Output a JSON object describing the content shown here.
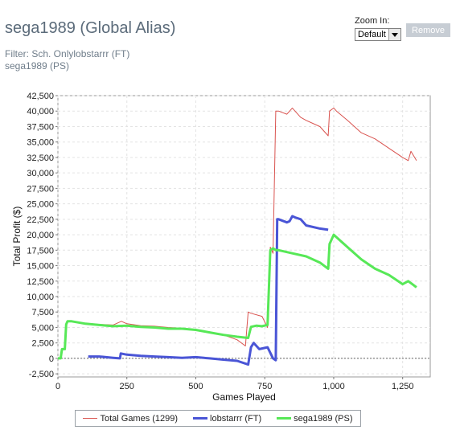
{
  "header": {
    "title": "sega1989 (Global Alias)",
    "filter_line1": "Filter: Sch. Onlylobstarrr (FT)",
    "filter_line2": "sega1989 (PS)"
  },
  "zoom": {
    "label": "Zoom In:",
    "selected": "Default",
    "remove_label": "Remove"
  },
  "colors": {
    "total": "#d9534f",
    "lobstarrr": "#4a55d6",
    "sega": "#57e857"
  },
  "chart_data": {
    "type": "line",
    "xlabel": "Games Played",
    "ylabel": "Total Profit ($)",
    "xlim": [
      0,
      1350
    ],
    "ylim": [
      -3000,
      42500
    ],
    "x_ticks": [
      0,
      250,
      500,
      750,
      1000,
      1250
    ],
    "x_tick_labels": [
      "0",
      "250",
      "500",
      "750",
      "1,000",
      "1,250"
    ],
    "y_ticks": [
      -2500,
      0,
      2500,
      5000,
      7500,
      10000,
      12500,
      15000,
      17500,
      20000,
      22500,
      25000,
      27500,
      30000,
      32500,
      35000,
      37500,
      40000,
      42500
    ],
    "y_tick_labels": [
      "-2,500",
      "0",
      "2,500",
      "5,000",
      "7,500",
      "10,000",
      "12,500",
      "15,000",
      "17,500",
      "20,000",
      "22,500",
      "25,000",
      "27,500",
      "30,000",
      "32,500",
      "35,000",
      "37,500",
      "40,000",
      "42,500"
    ],
    "grid": true,
    "legend_position": "bottom",
    "series": [
      {
        "name": "Total Games (1299)",
        "x": [
          0,
          10,
          15,
          25,
          30,
          35,
          50,
          100,
          150,
          200,
          230,
          250,
          300,
          350,
          400,
          450,
          500,
          550,
          600,
          650,
          680,
          690,
          700,
          740,
          760,
          770,
          775,
          780,
          790,
          800,
          830,
          850,
          880,
          900,
          950,
          980,
          985,
          1000,
          1010,
          1050,
          1100,
          1150,
          1200,
          1250,
          1270,
          1280,
          1300
        ],
        "y": [
          0,
          0,
          1500,
          1500,
          5500,
          6000,
          6000,
          5700,
          5500,
          5400,
          6000,
          5600,
          5300,
          5200,
          5000,
          4900,
          4600,
          4200,
          3800,
          3000,
          2000,
          7500,
          7300,
          6800,
          5000,
          18000,
          17500,
          17000,
          40000,
          40000,
          39500,
          40500,
          39000,
          38500,
          37500,
          36000,
          40000,
          40500,
          40000,
          38500,
          36500,
          35500,
          34000,
          32500,
          32000,
          33500,
          32000
        ]
      },
      {
        "name": "lobstarrr (FT)",
        "x": [
          110,
          150,
          200,
          225,
          228,
          250,
          300,
          350,
          400,
          450,
          500,
          550,
          600,
          650,
          690,
          700,
          710,
          730,
          760,
          780,
          790,
          795,
          800,
          830,
          840,
          850,
          860,
          880,
          900,
          950,
          980
        ],
        "y": [
          300,
          300,
          100,
          0,
          800,
          600,
          400,
          300,
          200,
          100,
          200,
          0,
          -200,
          -400,
          -1000,
          1800,
          2500,
          1500,
          1800,
          0,
          -300,
          22500,
          22500,
          22000,
          22200,
          23000,
          22800,
          22500,
          21500,
          21000,
          20800
        ]
      },
      {
        "name": "sega1989 (PS)",
        "x": [
          0,
          10,
          15,
          25,
          30,
          35,
          50,
          100,
          150,
          200,
          250,
          300,
          350,
          400,
          450,
          500,
          550,
          600,
          650,
          690,
          700,
          720,
          740,
          760,
          770,
          780,
          790,
          800,
          850,
          900,
          950,
          980,
          985,
          1000,
          1050,
          1100,
          1150,
          1200,
          1250,
          1270,
          1285,
          1300
        ],
        "y": [
          0,
          0,
          1500,
          1500,
          5500,
          6000,
          6000,
          5600,
          5400,
          5200,
          5300,
          5100,
          5000,
          4800,
          4800,
          4600,
          4200,
          3800,
          3500,
          3300,
          5100,
          5300,
          5200,
          5400,
          17500,
          17800,
          17500,
          17500,
          17000,
          16500,
          15500,
          14500,
          18500,
          20000,
          18000,
          16000,
          14500,
          13500,
          12000,
          12500,
          12000,
          11500
        ]
      }
    ]
  }
}
